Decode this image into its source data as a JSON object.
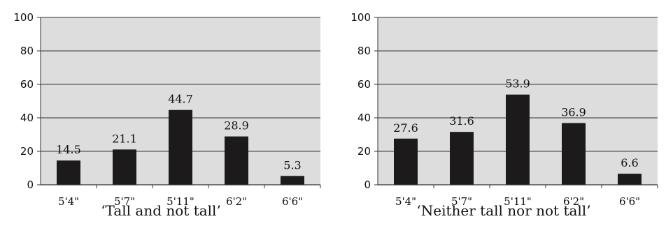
{
  "chart_data": [
    {
      "type": "bar",
      "title": "‘Tall and not tall’",
      "categories": [
        "5'4\"",
        "5'7\"",
        "5'11\"",
        "6'2\"",
        "6'6\""
      ],
      "values": [
        14.5,
        21.1,
        44.7,
        28.9,
        5.3
      ],
      "data_labels": [
        "14.5",
        "21.1",
        "44.7",
        "28.9",
        "5.3"
      ],
      "ylim": [
        0,
        100
      ],
      "yticks": [
        "0",
        "20",
        "40",
        "60",
        "80",
        "100"
      ],
      "grid": true,
      "legend": "none"
    },
    {
      "type": "bar",
      "title": "‘Neither tall nor not tall’",
      "categories": [
        "5'4\"",
        "5'7\"",
        "5'11\"",
        "6'2\"",
        "6'6\""
      ],
      "values": [
        27.6,
        31.6,
        53.9,
        36.9,
        6.6
      ],
      "data_labels": [
        "27.6",
        "31.6",
        "53.9",
        "36.9",
        "6.6"
      ],
      "ylim": [
        0,
        100
      ],
      "yticks": [
        "0",
        "20",
        "40",
        "60",
        "80",
        "100"
      ],
      "grid": true,
      "legend": "none"
    }
  ],
  "colors": {
    "plot_background": "#dddddd",
    "bar": "#1c1a1b",
    "gridline": "#555555",
    "axis": "#333333"
  }
}
